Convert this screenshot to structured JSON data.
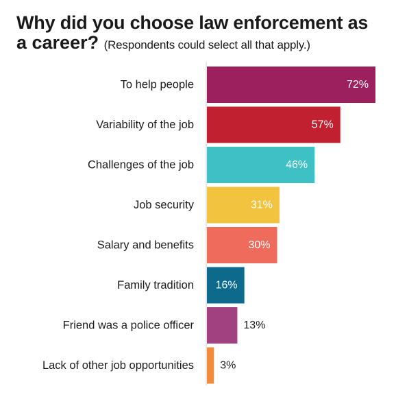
{
  "header": {
    "title_line1": "Why did you choose law enforcement as",
    "title_line2": "a career?",
    "subtitle": "(Respondents could select all that apply.)"
  },
  "chart_data": {
    "type": "bar",
    "orientation": "horizontal",
    "title": "Why did you choose law enforcement as a career?",
    "subtitle": "(Respondents could select all that apply.)",
    "xlabel": "",
    "ylabel": "",
    "xlim": [
      0,
      72
    ],
    "grid": false,
    "legend": "none",
    "categories": [
      "To help people",
      "Variability of the job",
      "Challenges of the job",
      "Job security",
      "Salary and benefits",
      "Family tradition",
      "Friend was a police officer",
      "Lack of other job opportunities"
    ],
    "values": [
      72,
      57,
      46,
      31,
      30,
      16,
      13,
      3
    ],
    "value_labels": [
      "72%",
      "57%",
      "46%",
      "31%",
      "30%",
      "16%",
      "13%",
      "3%"
    ],
    "colors": [
      "#9c1f5e",
      "#c0202f",
      "#3fc0c4",
      "#f2c33e",
      "#ef6b5c",
      "#0d6a8c",
      "#a2417f",
      "#f08c3c"
    ]
  }
}
